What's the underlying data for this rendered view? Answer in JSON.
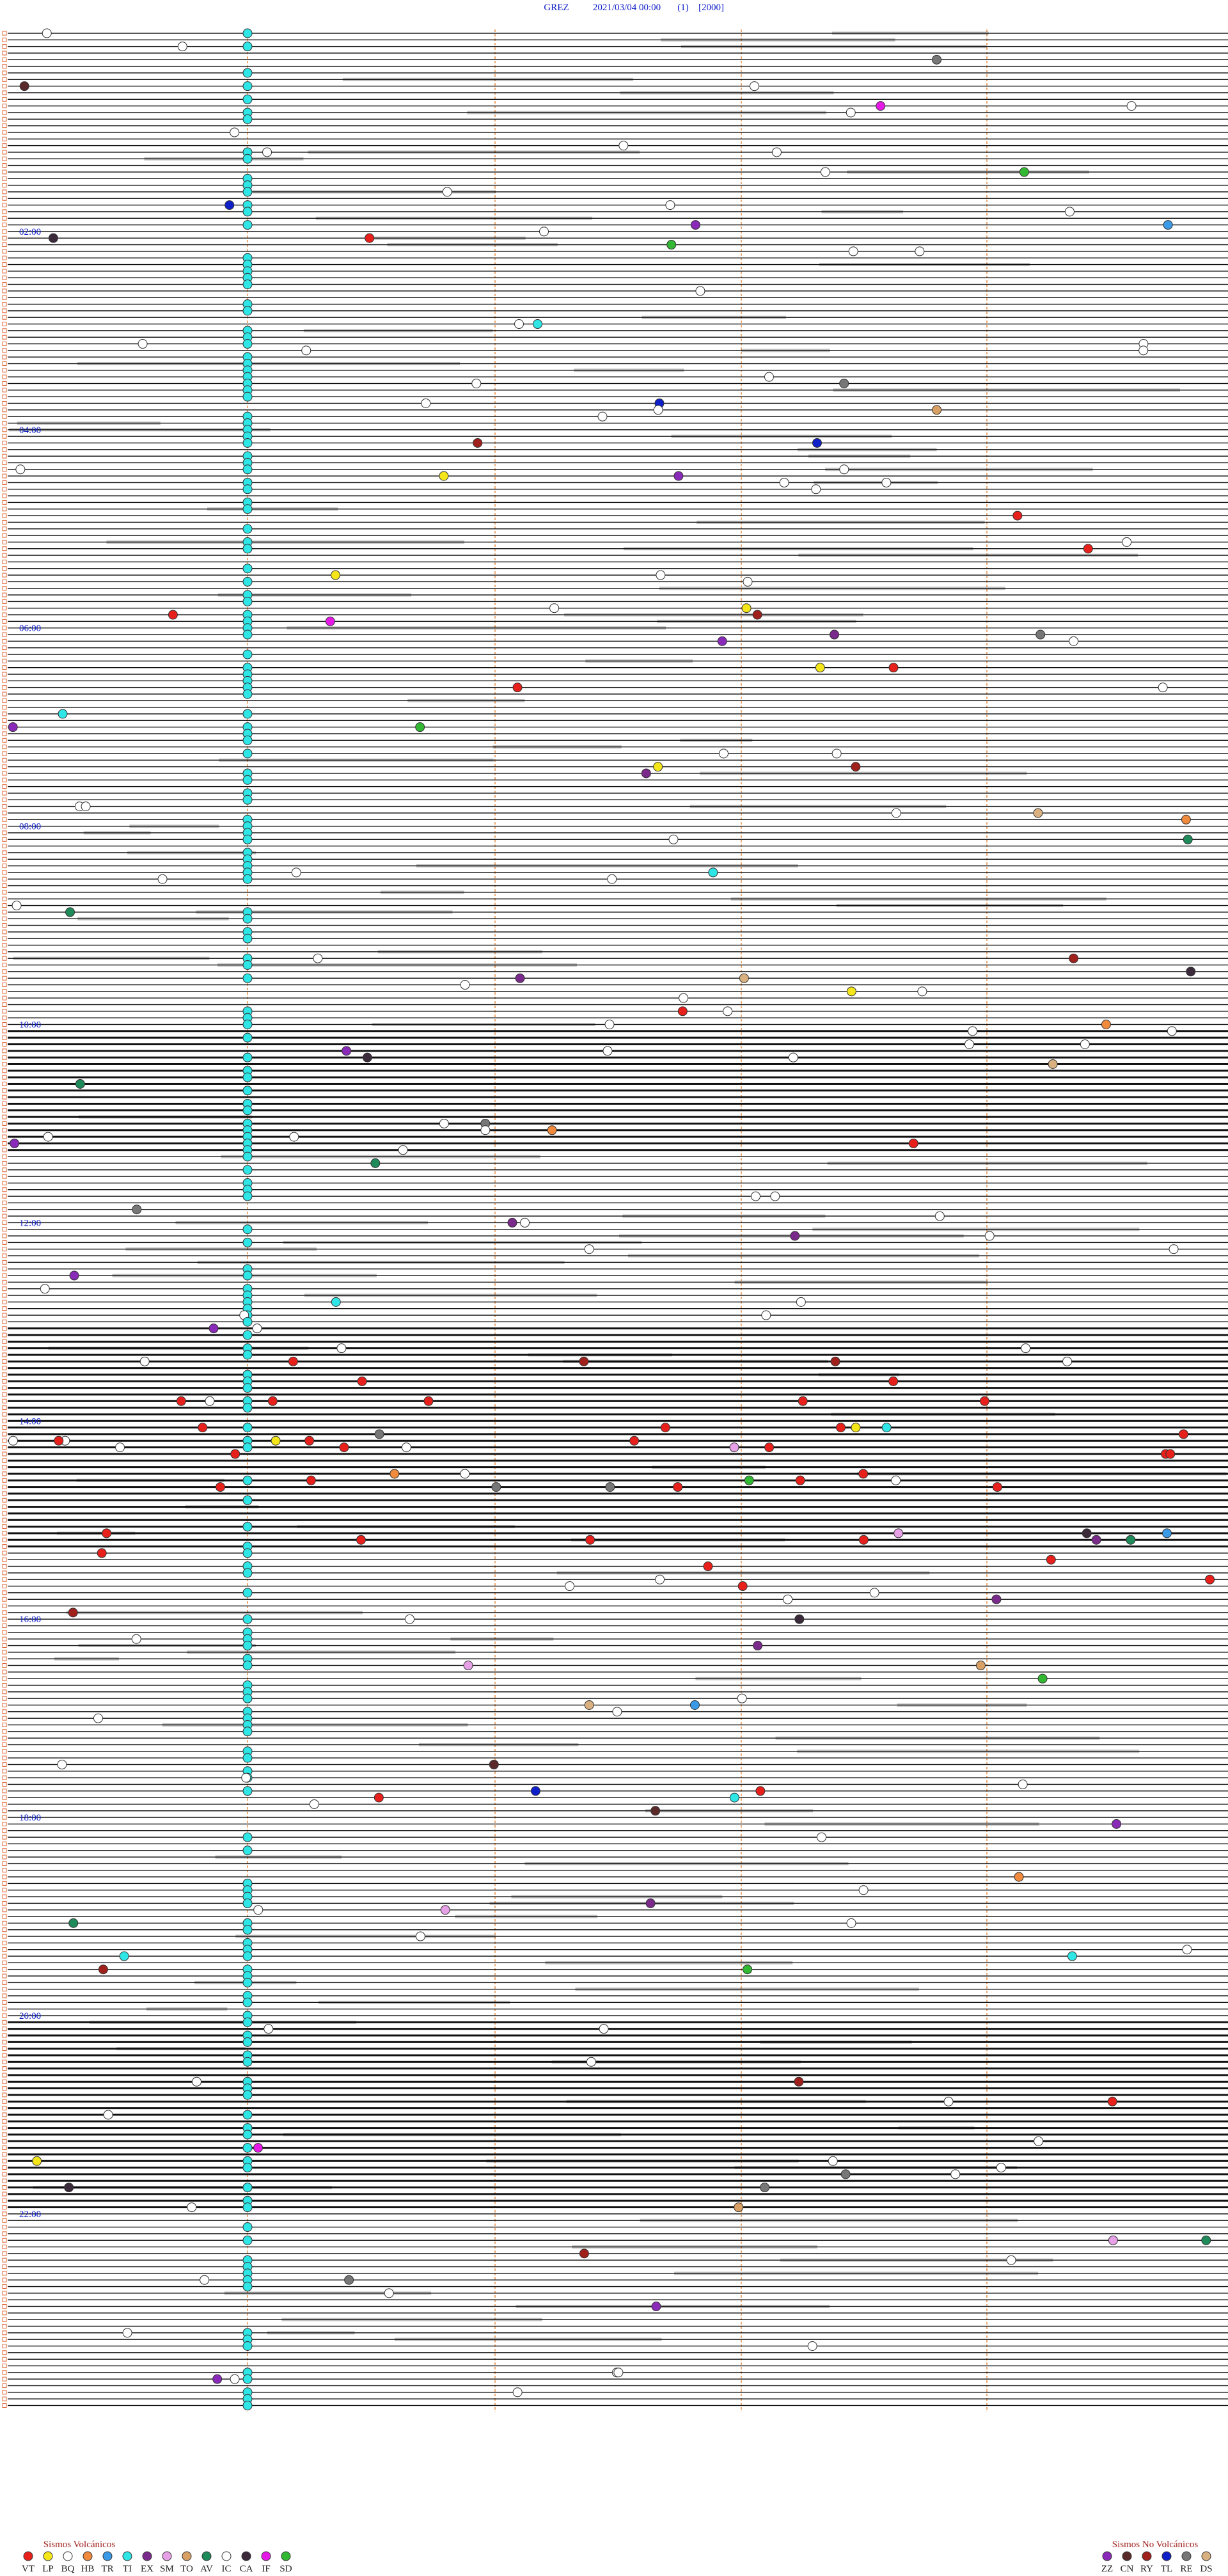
{
  "header": {
    "station": "GREZ",
    "datetime": "2021/03/04 00:00",
    "scale": "(1)",
    "amplitude": "[2000]"
  },
  "hour_labels": [
    "02:00",
    "04:00",
    "06:00",
    "08:00",
    "10:00",
    "12:00",
    "14:00",
    "16:00",
    "18:00",
    "20:00",
    "22:00"
  ],
  "legend_volcanic": {
    "title": "Sismos Volcánicos",
    "items": [
      {
        "code": "VT",
        "color": "#e8201c"
      },
      {
        "code": "LP",
        "color": "#f5e61a"
      },
      {
        "code": "BQ",
        "color": "#ffffff"
      },
      {
        "code": "HB",
        "color": "#f08a3c"
      },
      {
        "code": "TR",
        "color": "#3a9ae8"
      },
      {
        "code": "TI",
        "color": "#2ee6e6"
      },
      {
        "code": "EX",
        "color": "#7a2a8a"
      },
      {
        "code": "SM",
        "color": "#e6a0e6"
      },
      {
        "code": "TO",
        "color": "#d9a066"
      },
      {
        "code": "AV",
        "color": "#1f8a5a"
      },
      {
        "code": "IC",
        "color": "#ffffff"
      },
      {
        "code": "CA",
        "color": "#3a2a3a"
      },
      {
        "code": "IF",
        "color": "#e61ae6"
      },
      {
        "code": "SD",
        "color": "#33b833"
      }
    ]
  },
  "legend_nonvolcanic": {
    "title": "Sismos No Volcánicos",
    "items": [
      {
        "code": "ZZ",
        "color": "#8a2ab8"
      },
      {
        "code": "CN",
        "color": "#5a2a2a"
      },
      {
        "code": "RY",
        "color": "#a0201c"
      },
      {
        "code": "TL",
        "color": "#1020c8"
      },
      {
        "code": "RE",
        "color": "#777777"
      },
      {
        "code": "DS",
        "color": "#d9b080"
      }
    ]
  }
}
